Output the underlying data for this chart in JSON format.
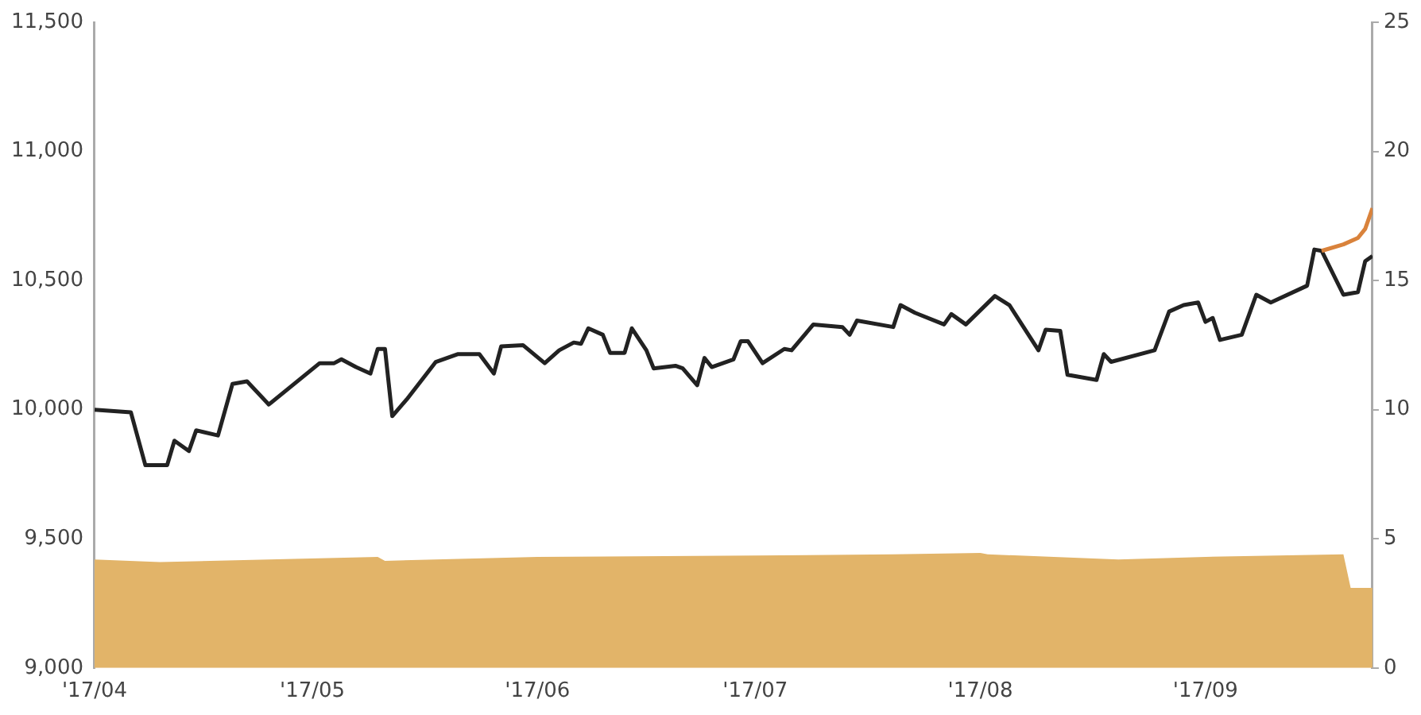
{
  "chart_data": {
    "type": "line",
    "xlim": [
      "2017-04-01",
      "2017-09-24"
    ],
    "xticks": [
      {
        "value": "2017-04-01",
        "label": "'17/04"
      },
      {
        "value": "2017-05-01",
        "label": "'17/05"
      },
      {
        "value": "2017-06-01",
        "label": "'17/06"
      },
      {
        "value": "2017-07-01",
        "label": "'17/07"
      },
      {
        "value": "2017-08-01",
        "label": "'17/08"
      },
      {
        "value": "2017-09-01",
        "label": "'17/09"
      }
    ],
    "ylim": [
      9000,
      11500
    ],
    "yticks": [
      {
        "value": 9000,
        "label": "9,000"
      },
      {
        "value": 9500,
        "label": "9,500"
      },
      {
        "value": 10000,
        "label": "10,000"
      },
      {
        "value": 10500,
        "label": "10,500"
      },
      {
        "value": 11000,
        "label": "11,000"
      },
      {
        "value": 11500,
        "label": "11,500"
      }
    ],
    "y2lim": [
      0,
      25
    ],
    "y2ticks": [
      0,
      5,
      10,
      15,
      20,
      25
    ],
    "grid": false,
    "legend": false,
    "marker": "none",
    "series": [
      {
        "type": "area",
        "axis": "y2",
        "color": "#e2b469",
        "x": [
          "2017-04-01",
          "2017-04-10",
          "2017-05-10",
          "2017-05-11",
          "2017-06-01",
          "2017-07-01",
          "2017-07-20",
          "2017-08-01",
          "2017-08-02",
          "2017-08-20",
          "2017-09-01",
          "2017-09-20",
          "2017-09-21",
          "2017-09-24"
        ],
        "values": [
          4.2,
          4.1,
          4.3,
          4.15,
          4.3,
          4.35,
          4.4,
          4.45,
          4.4,
          4.2,
          4.3,
          4.4,
          3.1,
          3.1
        ]
      },
      {
        "type": "line",
        "color": "#d9823b",
        "x": [
          "2017-09-17",
          "2017-09-20",
          "2017-09-22",
          "2017-09-23",
          "2017-09-24"
        ],
        "values": [
          10615,
          10640,
          10665,
          10700,
          10780
        ]
      },
      {
        "type": "line",
        "color": "#222222",
        "x": [
          "2017-04-01",
          "2017-04-06",
          "2017-04-08",
          "2017-04-11",
          "2017-04-12",
          "2017-04-14",
          "2017-04-15",
          "2017-04-18",
          "2017-04-20",
          "2017-04-22",
          "2017-04-25",
          "2017-05-02",
          "2017-05-04",
          "2017-05-05",
          "2017-05-07",
          "2017-05-09",
          "2017-05-10",
          "2017-05-11",
          "2017-05-12",
          "2017-05-14",
          "2017-05-18",
          "2017-05-21",
          "2017-05-24",
          "2017-05-26",
          "2017-05-27",
          "2017-05-30",
          "2017-06-02",
          "2017-06-04",
          "2017-06-06",
          "2017-06-07",
          "2017-06-08",
          "2017-06-10",
          "2017-06-11",
          "2017-06-13",
          "2017-06-14",
          "2017-06-16",
          "2017-06-17",
          "2017-06-20",
          "2017-06-21",
          "2017-06-23",
          "2017-06-24",
          "2017-06-25",
          "2017-06-28",
          "2017-06-29",
          "2017-06-30",
          "2017-07-02",
          "2017-07-05",
          "2017-07-06",
          "2017-07-09",
          "2017-07-13",
          "2017-07-14",
          "2017-07-15",
          "2017-07-20",
          "2017-07-21",
          "2017-07-23",
          "2017-07-27",
          "2017-07-28",
          "2017-07-30",
          "2017-08-03",
          "2017-08-05",
          "2017-08-09",
          "2017-08-10",
          "2017-08-12",
          "2017-08-13",
          "2017-08-17",
          "2017-08-18",
          "2017-08-19",
          "2017-08-25",
          "2017-08-27",
          "2017-08-29",
          "2017-08-31",
          "2017-09-01",
          "2017-09-02",
          "2017-09-03",
          "2017-09-06",
          "2017-09-08",
          "2017-09-10",
          "2017-09-15",
          "2017-09-16",
          "2017-09-17",
          "2017-09-20",
          "2017-09-22",
          "2017-09-23",
          "2017-09-24"
        ],
        "values": [
          10000,
          9990,
          9785,
          9785,
          9880,
          9840,
          9920,
          9900,
          10100,
          10110,
          10020,
          10180,
          10180,
          10195,
          10165,
          10140,
          10235,
          10235,
          9975,
          10040,
          10185,
          10215,
          10215,
          10140,
          10245,
          10250,
          10180,
          10230,
          10260,
          10255,
          10315,
          10290,
          10220,
          10220,
          10315,
          10230,
          10160,
          10170,
          10160,
          10095,
          10200,
          10165,
          10195,
          10265,
          10265,
          10180,
          10235,
          10230,
          10330,
          10320,
          10290,
          10345,
          10320,
          10405,
          10375,
          10330,
          10370,
          10330,
          10440,
          10405,
          10230,
          10310,
          10305,
          10135,
          10115,
          10215,
          10185,
          10230,
          10380,
          10405,
          10415,
          10340,
          10355,
          10270,
          10290,
          10445,
          10415,
          10480,
          10620,
          10615,
          10445,
          10455,
          10575,
          10595
        ]
      }
    ]
  }
}
